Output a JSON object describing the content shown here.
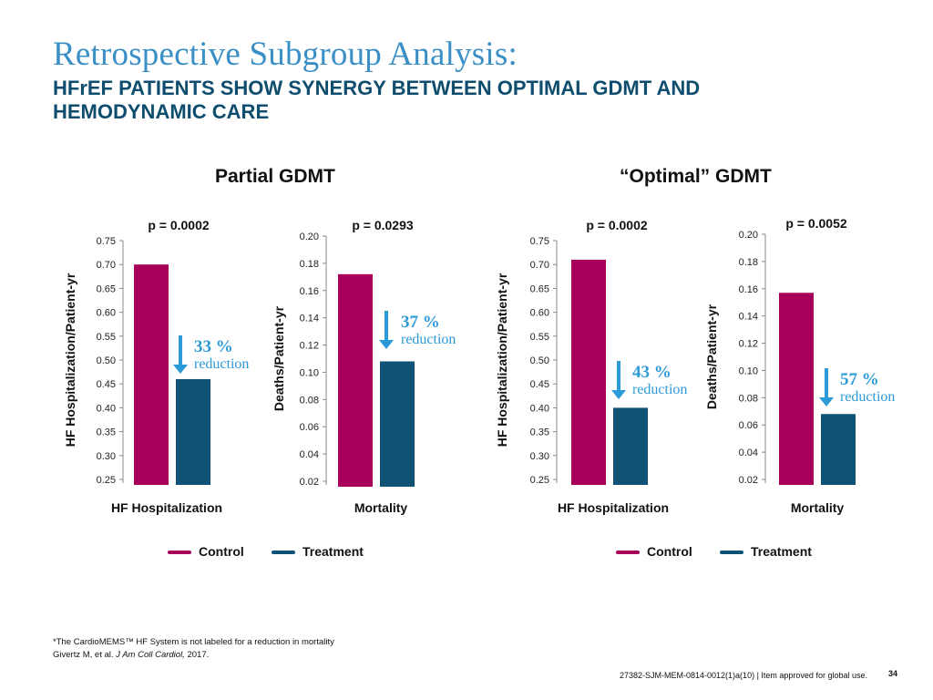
{
  "title": "Retrospective Subgroup Analysis:",
  "subtitle": "HFrEF PATIENTS SHOW SYNERGY BETWEEN OPTIMAL GDMT AND HEMODYNAMIC CARE",
  "groups": [
    {
      "label": "Partial GDMT"
    },
    {
      "label": "“Optimal” GDMT"
    }
  ],
  "colors": {
    "control": "#a8005a",
    "treatment": "#0e5275",
    "accent": "#2d9ad8",
    "title": "#3a8fc6"
  },
  "legend": {
    "control": "Control",
    "treatment": "Treatment"
  },
  "footnote": {
    "line1": "*The CardioMEMS™ HF System is not labeled for a reduction in mortality",
    "citation_authors": "Givertz M, et al. ",
    "citation_journal": "J Am Coll Cardiol,",
    "citation_year": " 2017."
  },
  "footer_code": "27382-SJM-MEM-0814-0012(1)a(10) | Item approved for global use.",
  "page_number": "34",
  "chart_data": [
    {
      "type": "bar",
      "group": "Partial GDMT",
      "title": "p = 0.0002",
      "xlabel": "HF Hospitalization",
      "ylabel": "HF Hospitalization/Patient-yr",
      "ylim": [
        0.25,
        0.75
      ],
      "ticks": [
        0.25,
        0.3,
        0.35,
        0.4,
        0.45,
        0.5,
        0.55,
        0.6,
        0.65,
        0.7,
        0.75
      ],
      "categories": [
        "HF Hospitalization"
      ],
      "series": [
        {
          "name": "Control",
          "values": [
            0.7
          ]
        },
        {
          "name": "Treatment",
          "values": [
            0.46
          ]
        }
      ],
      "annotation": {
        "pct": "33 %",
        "word": "reduction"
      }
    },
    {
      "type": "bar",
      "group": "Partial GDMT",
      "title": "p = 0.0293",
      "xlabel": "Mortality",
      "ylabel": "Deaths/Patient-yr",
      "ylim": [
        0.02,
        0.2
      ],
      "ticks": [
        0.02,
        0.04,
        0.06,
        0.08,
        0.1,
        0.12,
        0.14,
        0.16,
        0.18,
        0.2
      ],
      "categories": [
        "Mortality"
      ],
      "series": [
        {
          "name": "Control",
          "values": [
            0.172
          ]
        },
        {
          "name": "Treatment",
          "values": [
            0.108
          ]
        }
      ],
      "annotation": {
        "pct": "37 %",
        "word": "reduction"
      }
    },
    {
      "type": "bar",
      "group": "“Optimal” GDMT",
      "title": "p = 0.0002",
      "xlabel": "HF Hospitalization",
      "ylabel": "HF Hospitalization/Patient-yr",
      "ylim": [
        0.25,
        0.75
      ],
      "ticks": [
        0.25,
        0.3,
        0.35,
        0.4,
        0.45,
        0.5,
        0.55,
        0.6,
        0.65,
        0.7,
        0.75
      ],
      "categories": [
        "HF Hospitalization"
      ],
      "series": [
        {
          "name": "Control",
          "values": [
            0.71
          ]
        },
        {
          "name": "Treatment",
          "values": [
            0.4
          ]
        }
      ],
      "annotation": {
        "pct": "43 %",
        "word": "reduction"
      }
    },
    {
      "type": "bar",
      "group": "“Optimal” GDMT",
      "title": "p = 0.0052",
      "xlabel": "Mortality",
      "ylabel": "Deaths/Patient-yr",
      "ylim": [
        0.02,
        0.2
      ],
      "ticks": [
        0.02,
        0.04,
        0.06,
        0.08,
        0.1,
        0.12,
        0.14,
        0.16,
        0.18,
        0.2
      ],
      "categories": [
        "Mortality"
      ],
      "series": [
        {
          "name": "Control",
          "values": [
            0.157
          ]
        },
        {
          "name": "Treatment",
          "values": [
            0.068
          ]
        }
      ],
      "annotation": {
        "pct": "57 %",
        "word": "reduction"
      }
    }
  ]
}
